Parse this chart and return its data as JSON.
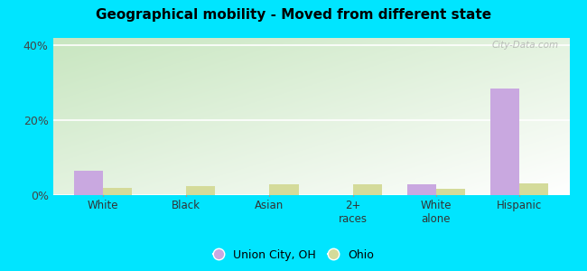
{
  "title": "Geographical mobility - Moved from different state",
  "categories": [
    "White",
    "Black",
    "Asian",
    "2+\nraces",
    "White\nalone",
    "Hispanic"
  ],
  "union_city_values": [
    6.5,
    0,
    0,
    0,
    3.0,
    28.5
  ],
  "ohio_values": [
    2.0,
    2.5,
    3.0,
    2.8,
    1.8,
    3.2
  ],
  "union_city_color": "#c9a8e0",
  "ohio_color": "#d4db9a",
  "ylim": [
    0,
    42
  ],
  "yticks": [
    0,
    20,
    40
  ],
  "ytick_labels": [
    "0%",
    "20%",
    "40%"
  ],
  "bg_green": "#c8e6c0",
  "bg_white": "#ffffff",
  "outer_bg": "#00e5ff",
  "bar_width": 0.35,
  "legend_labels": [
    "Union City, OH",
    "Ohio"
  ],
  "watermark": "City-Data.com"
}
